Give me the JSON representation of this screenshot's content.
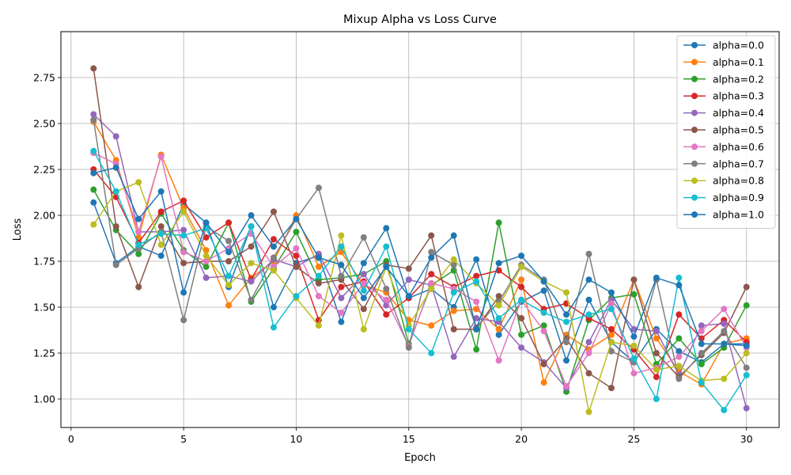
{
  "chart_data": {
    "type": "line",
    "title": "Mixup Alpha vs Loss Curve",
    "xlabel": "Epoch",
    "ylabel": "Loss",
    "xlim": [
      -0.45,
      31.45
    ],
    "ylim": [
      0.845,
      3.0
    ],
    "xticks": [
      0,
      5,
      10,
      15,
      20,
      25,
      30
    ],
    "yticks": [
      1.0,
      1.25,
      1.5,
      1.75,
      2.0,
      2.25,
      2.5,
      2.75
    ],
    "grid": true,
    "legend_position": "top-right",
    "x": [
      1,
      2,
      3,
      4,
      5,
      6,
      7,
      8,
      9,
      10,
      11,
      12,
      13,
      14,
      15,
      16,
      17,
      18,
      19,
      20,
      21,
      22,
      23,
      24,
      25,
      26,
      27,
      28,
      29,
      30
    ],
    "series": [
      {
        "name": "alpha=0.0",
        "color": "#1f77b4",
        "values": [
          2.07,
          1.74,
          1.83,
          1.78,
          2.06,
          1.96,
          1.61,
          1.94,
          1.5,
          1.74,
          1.78,
          1.42,
          1.74,
          1.93,
          1.55,
          1.6,
          1.5,
          1.76,
          1.35,
          1.53,
          1.59,
          1.21,
          1.54,
          1.31,
          1.2,
          1.38,
          1.26,
          1.2,
          1.3,
          1.3
        ]
      },
      {
        "name": "alpha=0.1",
        "color": "#ff7f0e",
        "values": [
          2.51,
          2.3,
          1.88,
          2.33,
          2.04,
          1.81,
          1.51,
          1.66,
          1.75,
          2.0,
          1.72,
          1.8,
          1.62,
          1.58,
          1.43,
          1.4,
          1.48,
          1.49,
          1.38,
          1.65,
          1.09,
          1.35,
          1.27,
          1.35,
          1.65,
          1.33,
          1.15,
          1.08,
          1.3,
          1.33
        ]
      },
      {
        "name": "alpha=0.2",
        "color": "#2ca02c",
        "values": [
          2.14,
          1.92,
          1.79,
          2.01,
          1.81,
          1.72,
          1.96,
          1.53,
          1.71,
          1.91,
          1.65,
          1.66,
          1.68,
          1.75,
          1.3,
          1.62,
          1.7,
          1.27,
          1.96,
          1.35,
          1.4,
          1.04,
          1.43,
          1.55,
          1.57,
          1.19,
          1.33,
          1.19,
          1.28,
          1.51
        ]
      },
      {
        "name": "alpha=0.3",
        "color": "#d62728",
        "values": [
          2.25,
          2.1,
          1.85,
          2.02,
          2.08,
          1.88,
          1.96,
          1.65,
          1.87,
          1.78,
          1.43,
          1.61,
          1.64,
          1.46,
          1.55,
          1.68,
          1.61,
          1.67,
          1.7,
          1.61,
          1.49,
          1.52,
          1.44,
          1.38,
          1.27,
          1.12,
          1.46,
          1.33,
          1.43,
          1.31
        ]
      },
      {
        "name": "alpha=0.4",
        "color": "#9467bd",
        "values": [
          2.55,
          2.43,
          1.91,
          1.91,
          1.92,
          1.66,
          1.67,
          1.64,
          1.76,
          1.72,
          1.79,
          1.55,
          1.68,
          1.51,
          1.65,
          1.62,
          1.23,
          1.44,
          1.42,
          1.28,
          1.2,
          1.06,
          1.31,
          1.54,
          1.38,
          1.37,
          1.13,
          1.4,
          1.41,
          0.95
        ]
      },
      {
        "name": "alpha=0.5",
        "color": "#8c564b",
        "values": [
          2.8,
          1.94,
          1.61,
          1.94,
          1.74,
          1.75,
          1.75,
          1.83,
          2.02,
          1.72,
          1.63,
          1.65,
          1.49,
          1.73,
          1.71,
          1.89,
          1.38,
          1.38,
          1.56,
          1.44,
          1.19,
          1.33,
          1.14,
          1.06,
          1.65,
          1.25,
          1.12,
          1.24,
          1.36,
          1.61
        ]
      },
      {
        "name": "alpha=0.6",
        "color": "#e377c2",
        "values": [
          2.34,
          2.28,
          1.91,
          2.32,
          1.8,
          1.75,
          1.82,
          1.9,
          1.72,
          1.82,
          1.56,
          1.47,
          1.63,
          1.54,
          1.29,
          1.63,
          1.6,
          1.53,
          1.21,
          1.54,
          1.37,
          1.07,
          1.25,
          1.52,
          1.14,
          1.17,
          1.23,
          1.37,
          1.49,
          1.28
        ]
      },
      {
        "name": "alpha=0.7",
        "color": "#7f7f7f",
        "values": [
          2.52,
          1.73,
          1.82,
          1.91,
          1.43,
          1.94,
          1.86,
          1.54,
          1.77,
          1.98,
          2.15,
          1.67,
          1.88,
          1.6,
          1.28,
          1.8,
          1.73,
          1.39,
          1.53,
          1.73,
          1.65,
          1.31,
          1.79,
          1.26,
          1.2,
          1.65,
          1.11,
          1.25,
          1.37,
          1.17
        ]
      },
      {
        "name": "alpha=0.8",
        "color": "#bcbd22",
        "values": [
          1.95,
          2.13,
          2.18,
          1.84,
          2.02,
          1.78,
          1.62,
          1.74,
          1.7,
          1.55,
          1.4,
          1.89,
          1.38,
          1.72,
          1.4,
          1.6,
          1.76,
          1.63,
          1.51,
          1.72,
          1.64,
          1.58,
          0.93,
          1.31,
          1.29,
          1.16,
          1.18,
          1.1,
          1.11,
          1.25
        ]
      },
      {
        "name": "alpha=0.9",
        "color": "#17becf",
        "values": [
          2.35,
          2.13,
          1.84,
          1.9,
          1.89,
          1.93,
          1.67,
          1.94,
          1.39,
          1.56,
          1.67,
          1.83,
          1.59,
          1.83,
          1.38,
          1.25,
          1.58,
          1.64,
          1.44,
          1.54,
          1.47,
          1.42,
          1.46,
          1.49,
          1.22,
          1.0,
          1.66,
          1.09,
          0.94,
          1.13
        ]
      },
      {
        "name": "alpha=1.0",
        "color": "#1f77b4",
        "values": [
          2.23,
          2.26,
          1.98,
          2.13,
          1.58,
          1.96,
          1.8,
          2.0,
          1.83,
          1.98,
          1.77,
          1.73,
          1.55,
          1.72,
          1.56,
          1.77,
          1.89,
          1.38,
          1.74,
          1.78,
          1.64,
          1.46,
          1.65,
          1.58,
          1.34,
          1.66,
          1.62,
          1.3,
          1.3,
          1.29
        ]
      }
    ]
  }
}
